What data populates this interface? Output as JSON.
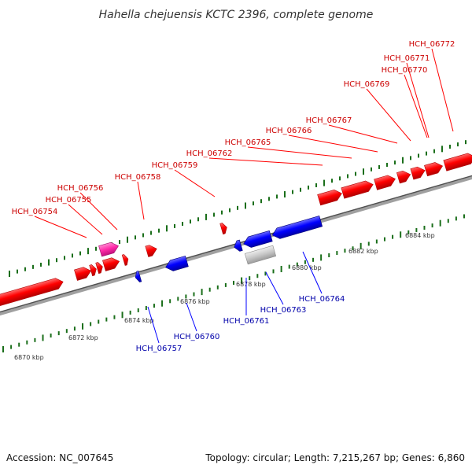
{
  "title": "Hahella chejuensis KCTC 2396, complete genome",
  "footer": {
    "accession": "Accession: NC_007645",
    "summary": "Topology: circular; Length: 7,215,267 bp; Genes: 6,860"
  },
  "colors": {
    "forward_gene": "#ff0000",
    "reverse_gene": "#0000ff",
    "highlighted_gene": "#ff2aa8",
    "other_feature": "#c8c8c8",
    "forward_label": "#cc0000",
    "reverse_label": "#0000aa",
    "tick": "#1a6e1a"
  },
  "ruler_labels": [
    "6870 kbp",
    "6872 kbp",
    "6874 kbp",
    "6876 kbp",
    "6878 kbp",
    "6880 kbp",
    "6882 kbp",
    "6884 kbp"
  ],
  "forward_labels": [
    "HCH_06754",
    "HCH_06755",
    "HCH_06756",
    "HCH_06758",
    "HCH_06759",
    "HCH_06762",
    "HCH_06765",
    "HCH_06766",
    "HCH_06767",
    "HCH_06769",
    "HCH_06770",
    "HCH_06771",
    "HCH_06772"
  ],
  "reverse_labels": [
    "HCH_06757",
    "HCH_06760",
    "HCH_06761",
    "HCH_06763",
    "HCH_06764"
  ]
}
